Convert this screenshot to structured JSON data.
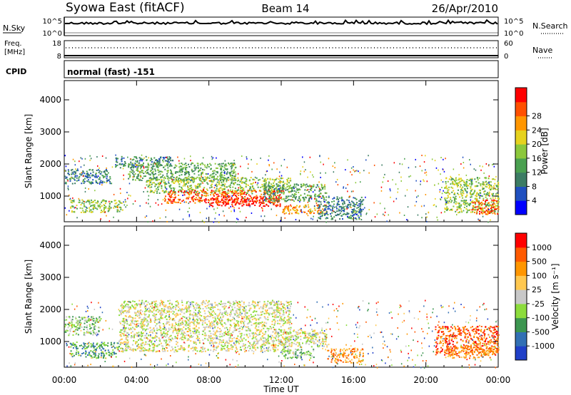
{
  "header": {
    "station": "Syowa East (fitACF)",
    "beam": "Beam 14",
    "date": "26/Apr/2010"
  },
  "noise_panel": {
    "left_label": "N.Sky",
    "right_label": "N.Search",
    "ticks_left": [
      "10^5",
      "10^0"
    ],
    "ticks_right": [
      "10^5",
      "10^0"
    ]
  },
  "freq_panel": {
    "left_label_line1": "Freq.",
    "left_label_line2": "[MHz]",
    "right_label": "Nave",
    "ticks_left": [
      "18",
      "8"
    ],
    "ticks_right": [
      "60",
      "0"
    ]
  },
  "cpid": {
    "label": "CPID",
    "mode": "normal (fast) -151"
  },
  "colors": {
    "power_scale": [
      "#0000ff",
      "#2050c0",
      "#3c7c64",
      "#4aa050",
      "#8cc83c",
      "#e6d21e",
      "#ff9600",
      "#ff5000",
      "#ff0000"
    ],
    "velocity_scale": [
      "#ff0000",
      "#ff5a00",
      "#ff9600",
      "#ffc850",
      "#c8c8c8",
      "#8cdc3c",
      "#3c9650",
      "#3270b4",
      "#2040c8"
    ]
  },
  "chart_data": [
    {
      "type": "heatmap",
      "name": "power",
      "ylabel": "Slant Range [km]",
      "y_ticks": [
        "1000",
        "2000",
        "3000",
        "4000"
      ],
      "ylim": [
        200,
        4600
      ],
      "x_ticks": [
        "00:00",
        "04:00",
        "08:00",
        "12:00",
        "16:00",
        "20:00",
        "00:00"
      ],
      "xlim": [
        0,
        24
      ],
      "colorbar_label": "Power [dB]",
      "colorbar_ticks": [
        "4",
        "8",
        "12",
        "16",
        "20",
        "24",
        "28"
      ],
      "regions": [
        {
          "t0": 0.0,
          "t1": 2.6,
          "r0": 1400,
          "r1": 1850,
          "level": 2
        },
        {
          "t0": 0.3,
          "t1": 3.2,
          "r0": 500,
          "r1": 900,
          "level": 4
        },
        {
          "t0": 2.8,
          "t1": 6.0,
          "r0": 1900,
          "r1": 2250,
          "level": 2
        },
        {
          "t0": 3.5,
          "t1": 9.5,
          "r0": 1500,
          "r1": 2050,
          "level": 3
        },
        {
          "t0": 4.5,
          "t1": 12.5,
          "r0": 1100,
          "r1": 1600,
          "level": 4
        },
        {
          "t0": 5.5,
          "t1": 12.0,
          "r0": 800,
          "r1": 1200,
          "level": 7
        },
        {
          "t0": 8.0,
          "t1": 12.0,
          "r0": 700,
          "r1": 1000,
          "level": 8
        },
        {
          "t0": 11.0,
          "t1": 14.5,
          "r0": 850,
          "r1": 1400,
          "level": 3
        },
        {
          "t0": 12.0,
          "t1": 14.5,
          "r0": 450,
          "r1": 750,
          "level": 6
        },
        {
          "t0": 14.0,
          "t1": 16.5,
          "r0": 300,
          "r1": 1000,
          "level": 2
        },
        {
          "t0": 21.0,
          "t1": 24.0,
          "r0": 500,
          "r1": 1600,
          "level": 4
        },
        {
          "t0": 22.5,
          "t1": 24.0,
          "r0": 450,
          "r1": 900,
          "level": 7
        }
      ]
    },
    {
      "type": "heatmap",
      "name": "velocity",
      "ylabel": "Slant Range [km]",
      "y_ticks": [
        "1000",
        "2000",
        "3000",
        "4000"
      ],
      "ylim": [
        200,
        4600
      ],
      "x_ticks": [
        "00:00",
        "04:00",
        "08:00",
        "12:00",
        "16:00",
        "20:00",
        "00:00"
      ],
      "xlabel": "Time UT",
      "xlim": [
        0,
        24
      ],
      "colorbar_label": "Velocity [m s⁻¹]",
      "colorbar_ticks": [
        "1000",
        "500",
        "100",
        "25",
        "-25",
        "-100",
        "-500",
        "-1000"
      ],
      "regions": [
        {
          "t0": 0.0,
          "t1": 2.0,
          "r0": 1200,
          "r1": 1800,
          "level": 3
        },
        {
          "t0": 0.3,
          "t1": 3.0,
          "r0": 500,
          "r1": 1000,
          "level": 2
        },
        {
          "t0": 3.0,
          "t1": 12.5,
          "r0": 700,
          "r1": 2300,
          "level": 4
        },
        {
          "t0": 11.5,
          "t1": 14.5,
          "r0": 850,
          "r1": 1400,
          "level": 4
        },
        {
          "t0": 12.0,
          "t1": 13.8,
          "r0": 500,
          "r1": 800,
          "level": 3
        },
        {
          "t0": 14.5,
          "t1": 16.5,
          "r0": 350,
          "r1": 800,
          "level": 6
        },
        {
          "t0": 20.5,
          "t1": 24.0,
          "r0": 600,
          "r1": 1500,
          "level": 7
        },
        {
          "t0": 21.0,
          "t1": 24.0,
          "r0": 500,
          "r1": 900,
          "level": 6
        }
      ]
    }
  ]
}
